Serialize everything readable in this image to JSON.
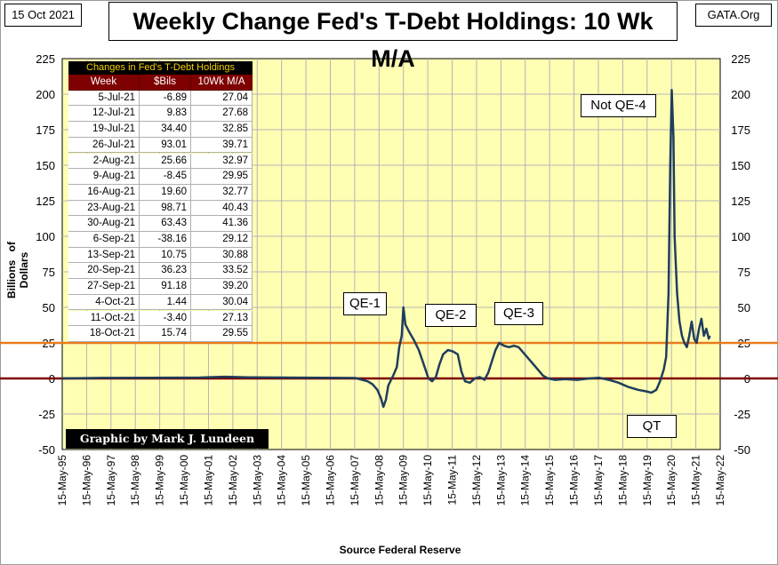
{
  "header": {
    "date": "15 Oct 2021",
    "title": "Weekly Change Fed's T-Debt Holdings: 10 Wk M/A",
    "source_site": "GATA.Org"
  },
  "colors": {
    "plot_bg": "#ffffb4",
    "series_line": "#1f3d5c",
    "zero_line": "#7f0000",
    "ref_line": "#e87c1e",
    "grid": "#b4b4b4",
    "table_header_bg": "#7f0000",
    "table_title_fg": "#f5d000"
  },
  "table": {
    "title": "Changes in Fed's T-Debt Holdings",
    "headers": [
      "Week",
      "$Bils",
      "10Wk M/A"
    ],
    "rows": [
      [
        "5-Jul-21",
        "-6.89",
        "27.04"
      ],
      [
        "12-Jul-21",
        "9.83",
        "27.68"
      ],
      [
        "19-Jul-21",
        "34.40",
        "32.85"
      ],
      [
        "26-Jul-21",
        "93.01",
        "39.71"
      ],
      [
        "2-Aug-21",
        "25.66",
        "32.97"
      ],
      [
        "9-Aug-21",
        "-8.45",
        "29.95"
      ],
      [
        "16-Aug-21",
        "19.60",
        "32.77"
      ],
      [
        "23-Aug-21",
        "98.71",
        "40.43"
      ],
      [
        "30-Aug-21",
        "63.43",
        "41.36"
      ],
      [
        "6-Sep-21",
        "-38.16",
        "29.12"
      ],
      [
        "13-Sep-21",
        "10.75",
        "30.88"
      ],
      [
        "20-Sep-21",
        "36.23",
        "33.52"
      ],
      [
        "27-Sep-21",
        "91.18",
        "39.20"
      ],
      [
        "4-Oct-21",
        "1.44",
        "30.04"
      ],
      [
        "11-Oct-21",
        "-3.40",
        "27.13"
      ],
      [
        "18-Oct-21",
        "15.74",
        "29.55"
      ]
    ]
  },
  "credit": "Graphic by Mark J. Lundeen",
  "annotations": [
    {
      "id": "qe1",
      "text": "QE-1"
    },
    {
      "id": "qe2",
      "text": "QE-2"
    },
    {
      "id": "qe3",
      "text": "QE-3"
    },
    {
      "id": "notqe4",
      "text": "Not QE-4"
    },
    {
      "id": "qt",
      "text": "QT"
    }
  ],
  "chart_data": {
    "type": "line",
    "title": "Weekly Change Fed's T-Debt Holdings: 10 Wk M/A",
    "xlabel": "Source Federal Reserve",
    "ylabel": "Billions of Dollars",
    "ylim": [
      -50,
      225
    ],
    "yticks": [
      -50,
      -25,
      0,
      25,
      50,
      75,
      100,
      125,
      150,
      175,
      200,
      225
    ],
    "xlim": [
      1995.37,
      2022.37
    ],
    "xticks": [
      "15-May-95",
      "15-May-96",
      "15-May-97",
      "15-May-98",
      "15-May-99",
      "15-May-00",
      "15-May-01",
      "15-May-02",
      "15-May-03",
      "15-May-04",
      "15-May-05",
      "15-May-06",
      "15-May-07",
      "15-May-08",
      "15-May-09",
      "15-May-10",
      "15-May-11",
      "15-May-12",
      "15-May-13",
      "15-May-14",
      "15-May-15",
      "15-May-16",
      "15-May-17",
      "15-May-18",
      "15-May-19",
      "15-May-20",
      "15-May-21",
      "15-May-22"
    ],
    "grid": true,
    "reference_lines": [
      0,
      25
    ],
    "series": [
      {
        "values": [
          [
            1995.37,
            0
          ],
          [
            1997.0,
            0.4
          ],
          [
            1999.0,
            0.5
          ],
          [
            2001.0,
            0.6
          ],
          [
            2002.0,
            1.2
          ],
          [
            2003.0,
            0.8
          ],
          [
            2004.5,
            0.6
          ],
          [
            2006.0,
            0.5
          ],
          [
            2007.4,
            0.3
          ],
          [
            2007.9,
            -2
          ],
          [
            2008.1,
            -4
          ],
          [
            2008.3,
            -8
          ],
          [
            2008.45,
            -14
          ],
          [
            2008.55,
            -20
          ],
          [
            2008.65,
            -15
          ],
          [
            2008.75,
            -5
          ],
          [
            2008.95,
            2
          ],
          [
            2009.1,
            8
          ],
          [
            2009.2,
            22
          ],
          [
            2009.3,
            30
          ],
          [
            2009.37,
            50
          ],
          [
            2009.45,
            38
          ],
          [
            2009.6,
            33
          ],
          [
            2009.8,
            27
          ],
          [
            2010.0,
            20
          ],
          [
            2010.2,
            10
          ],
          [
            2010.4,
            0
          ],
          [
            2010.55,
            -2
          ],
          [
            2010.7,
            1
          ],
          [
            2010.85,
            10
          ],
          [
            2011.0,
            17
          ],
          [
            2011.2,
            20
          ],
          [
            2011.4,
            19
          ],
          [
            2011.6,
            17
          ],
          [
            2011.75,
            5
          ],
          [
            2011.9,
            -2
          ],
          [
            2012.1,
            -3
          ],
          [
            2012.3,
            0
          ],
          [
            2012.5,
            1
          ],
          [
            2012.7,
            -1
          ],
          [
            2012.85,
            4
          ],
          [
            2013.0,
            12
          ],
          [
            2013.15,
            20
          ],
          [
            2013.3,
            25
          ],
          [
            2013.5,
            23
          ],
          [
            2013.7,
            22
          ],
          [
            2013.9,
            23
          ],
          [
            2014.1,
            22
          ],
          [
            2014.3,
            18
          ],
          [
            2014.5,
            14
          ],
          [
            2014.7,
            10
          ],
          [
            2014.9,
            6
          ],
          [
            2015.1,
            2
          ],
          [
            2015.3,
            0
          ],
          [
            2015.6,
            -1
          ],
          [
            2016.0,
            -0.5
          ],
          [
            2016.5,
            -1
          ],
          [
            2017.0,
            0
          ],
          [
            2017.4,
            0.5
          ],
          [
            2017.8,
            -1
          ],
          [
            2018.2,
            -3
          ],
          [
            2018.6,
            -6
          ],
          [
            2019.0,
            -8
          ],
          [
            2019.3,
            -9
          ],
          [
            2019.55,
            -10
          ],
          [
            2019.75,
            -8
          ],
          [
            2019.9,
            -2
          ],
          [
            2020.05,
            6
          ],
          [
            2020.15,
            15
          ],
          [
            2020.25,
            60
          ],
          [
            2020.32,
            150
          ],
          [
            2020.38,
            203
          ],
          [
            2020.45,
            170
          ],
          [
            2020.5,
            100
          ],
          [
            2020.6,
            60
          ],
          [
            2020.7,
            40
          ],
          [
            2020.8,
            30
          ],
          [
            2020.9,
            25
          ],
          [
            2021.0,
            22
          ],
          [
            2021.1,
            30
          ],
          [
            2021.2,
            40
          ],
          [
            2021.3,
            28
          ],
          [
            2021.4,
            25
          ],
          [
            2021.5,
            35
          ],
          [
            2021.6,
            42
          ],
          [
            2021.7,
            30
          ],
          [
            2021.8,
            35
          ],
          [
            2021.9,
            28
          ],
          [
            2021.95,
            30
          ]
        ]
      }
    ]
  }
}
